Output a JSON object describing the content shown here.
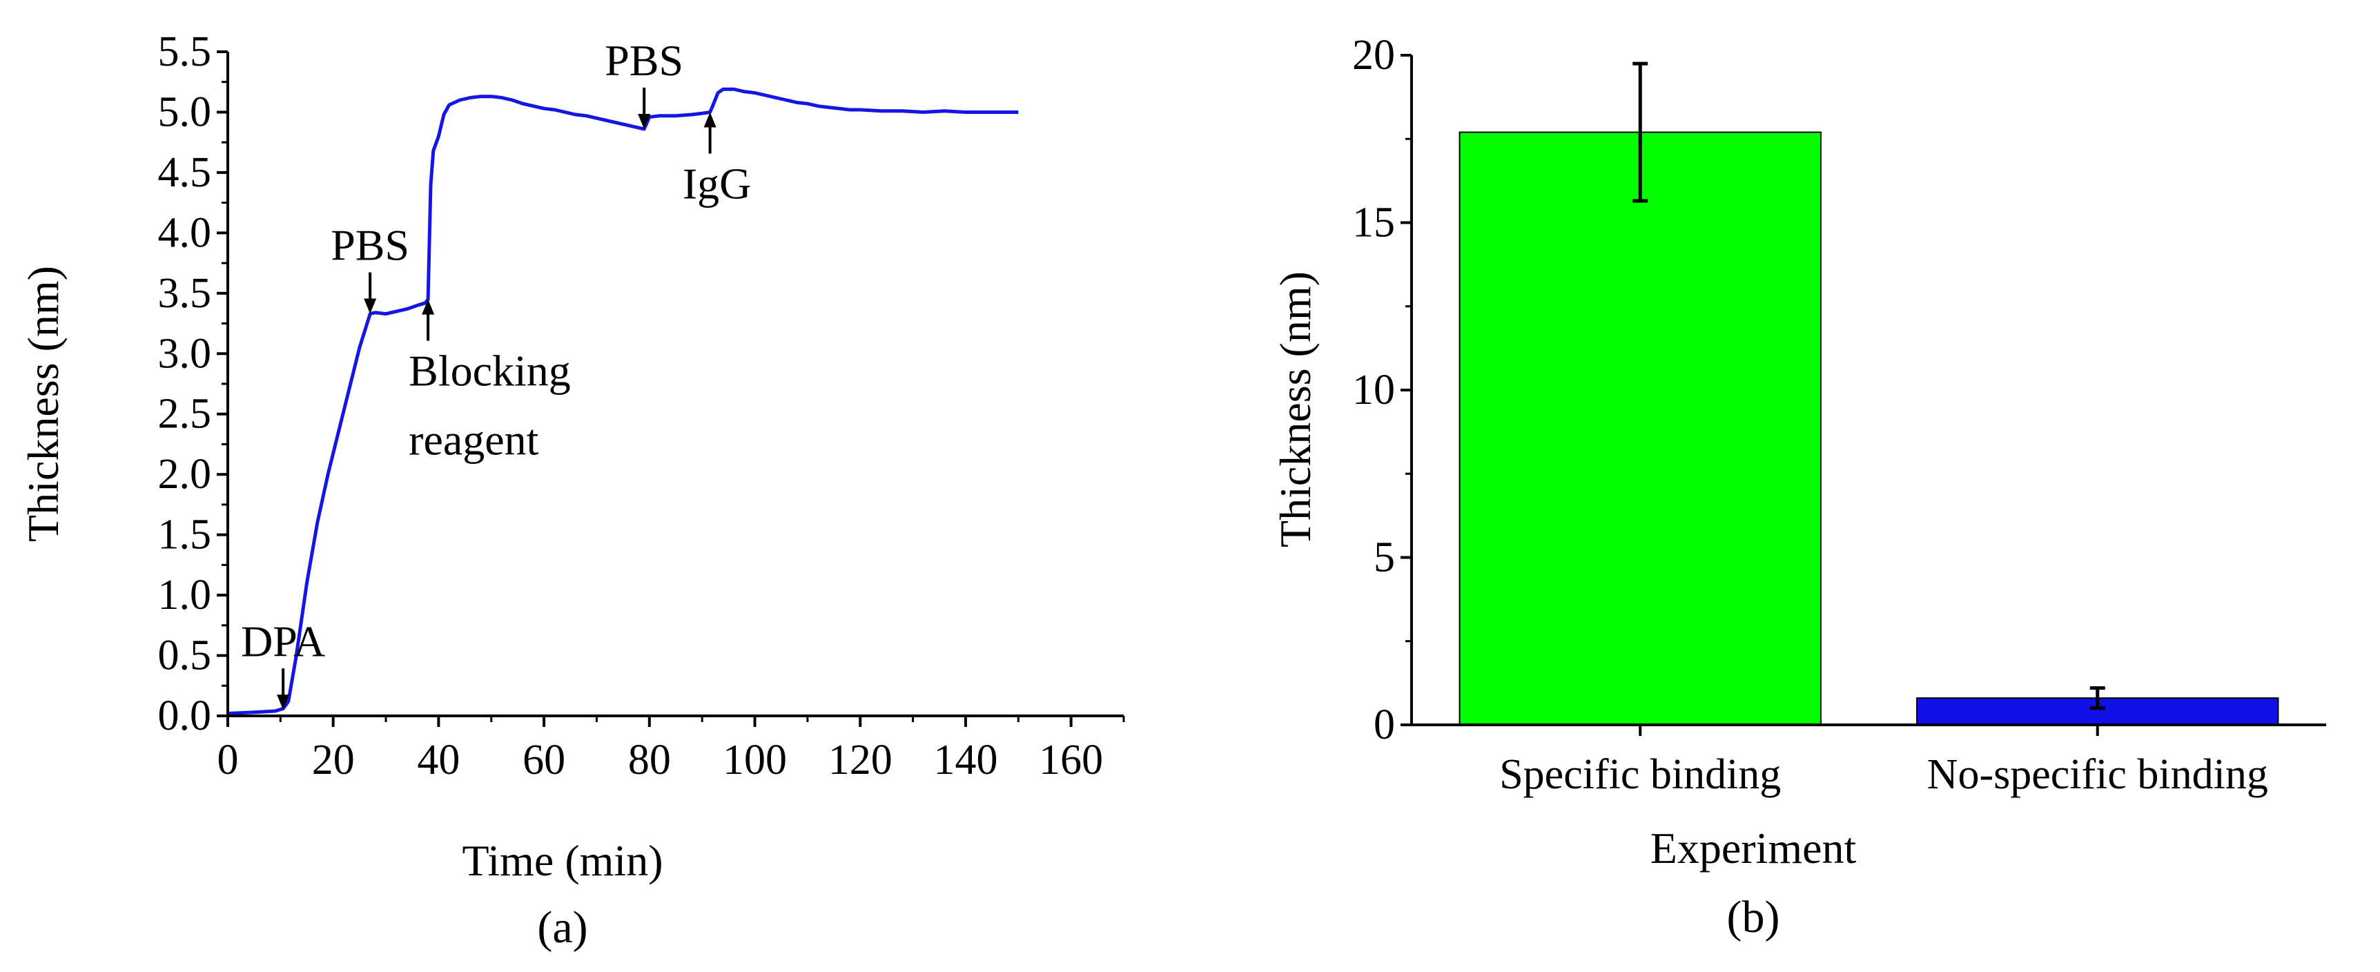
{
  "chart_data": [
    {
      "id": "a",
      "type": "line",
      "caption": "(a)",
      "xlabel": "Time (min)",
      "ylabel": "Thickness (nm)",
      "xlim": [
        0,
        170
      ],
      "ylim": [
        0,
        5.5
      ],
      "xticks": [
        "0",
        "20",
        "40",
        "60",
        "80",
        "100",
        "120",
        "140",
        "160"
      ],
      "yticks": [
        "0.0",
        "0.5",
        "1.0",
        "1.5",
        "2.0",
        "2.5",
        "3.0",
        "3.5",
        "4.0",
        "4.5",
        "5.0",
        "5.5"
      ],
      "series": [
        {
          "name": "Thickness",
          "color": "#1515e6",
          "points": [
            [
              0,
              0.02
            ],
            [
              5,
              0.03
            ],
            [
              9,
              0.04
            ],
            [
              10.5,
              0.06
            ],
            [
              11.5,
              0.12
            ],
            [
              13,
              0.5
            ],
            [
              15,
              1.1
            ],
            [
              17,
              1.6
            ],
            [
              19,
              2.0
            ],
            [
              21,
              2.35
            ],
            [
              23,
              2.7
            ],
            [
              25,
              3.05
            ],
            [
              27,
              3.33
            ],
            [
              28,
              3.34
            ],
            [
              30,
              3.33
            ],
            [
              32,
              3.35
            ],
            [
              34,
              3.37
            ],
            [
              36,
              3.4
            ],
            [
              37.5,
              3.42
            ],
            [
              38,
              3.45
            ],
            [
              38.5,
              4.4
            ],
            [
              39,
              4.68
            ],
            [
              40,
              4.8
            ],
            [
              41,
              4.98
            ],
            [
              42,
              5.06
            ],
            [
              44,
              5.1
            ],
            [
              46,
              5.12
            ],
            [
              48,
              5.13
            ],
            [
              50,
              5.13
            ],
            [
              52,
              5.12
            ],
            [
              54,
              5.1
            ],
            [
              56,
              5.07
            ],
            [
              58,
              5.05
            ],
            [
              60,
              5.03
            ],
            [
              62,
              5.02
            ],
            [
              64,
              5.0
            ],
            [
              66,
              4.98
            ],
            [
              68,
              4.97
            ],
            [
              70,
              4.95
            ],
            [
              72,
              4.93
            ],
            [
              74,
              4.91
            ],
            [
              76,
              4.89
            ],
            [
              78,
              4.87
            ],
            [
              79,
              4.86
            ],
            [
              80,
              4.96
            ],
            [
              82,
              4.97
            ],
            [
              85,
              4.97
            ],
            [
              88,
              4.98
            ],
            [
              90,
              4.99
            ],
            [
              91.5,
              5.0
            ],
            [
              92,
              5.05
            ],
            [
              93,
              5.16
            ],
            [
              94,
              5.19
            ],
            [
              96,
              5.19
            ],
            [
              98,
              5.17
            ],
            [
              100,
              5.16
            ],
            [
              102,
              5.14
            ],
            [
              104,
              5.12
            ],
            [
              106,
              5.1
            ],
            [
              108,
              5.08
            ],
            [
              110,
              5.07
            ],
            [
              112,
              5.05
            ],
            [
              114,
              5.04
            ],
            [
              116,
              5.03
            ],
            [
              118,
              5.02
            ],
            [
              120,
              5.02
            ],
            [
              124,
              5.01
            ],
            [
              128,
              5.01
            ],
            [
              132,
              5.0
            ],
            [
              136,
              5.01
            ],
            [
              140,
              5.0
            ],
            [
              144,
              5.0
            ],
            [
              148,
              5.0
            ],
            [
              150,
              5.0
            ]
          ]
        }
      ],
      "annotations": [
        {
          "text": "DPA",
          "x": 10.5,
          "y": 0.05,
          "direction": "down"
        },
        {
          "text": "PBS",
          "x": 27,
          "y": 3.33,
          "direction": "down"
        },
        {
          "text": "Blocking reagent",
          "lines": [
            "Blocking",
            "reagent"
          ],
          "x": 38,
          "y": 3.45,
          "direction": "up"
        },
        {
          "text": "PBS",
          "x": 79,
          "y": 4.86,
          "direction": "down"
        },
        {
          "text": "IgG",
          "x": 91.5,
          "y": 5.0,
          "direction": "up"
        }
      ]
    },
    {
      "id": "b",
      "type": "bar",
      "caption": "(b)",
      "xlabel": "Experiment",
      "ylabel": "Thickness (nm)",
      "ylim": [
        0,
        20
      ],
      "yticks": [
        "0",
        "5",
        "10",
        "15",
        "20"
      ],
      "categories": [
        "Specific binding",
        "No-specific binding"
      ],
      "values": [
        17.7,
        0.8
      ],
      "errors": [
        2.05,
        0.3
      ],
      "colors": [
        "#00ff00",
        "#1010e8"
      ]
    }
  ]
}
